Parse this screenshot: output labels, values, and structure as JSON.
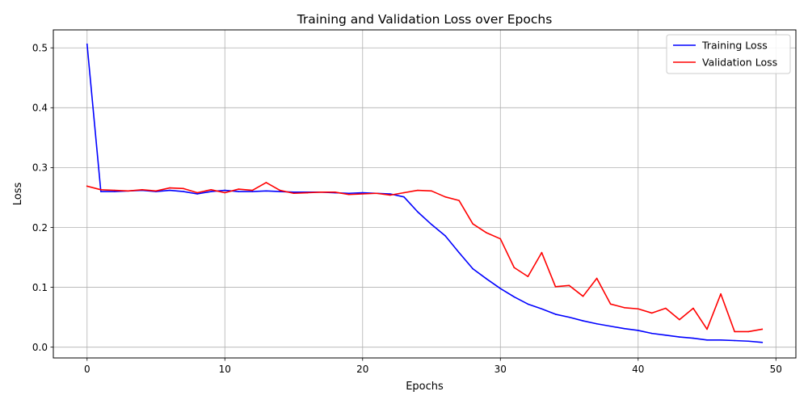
{
  "chart_data": {
    "type": "line",
    "title": "Training and Validation Loss over Epochs",
    "xlabel": "Epochs",
    "ylabel": "Loss",
    "xlim": [
      -2.45,
      51.45
    ],
    "ylim": [
      -0.018,
      0.53
    ],
    "xticks": [
      0,
      10,
      20,
      30,
      40,
      50
    ],
    "xtick_labels": [
      "0",
      "10",
      "20",
      "30",
      "40",
      "50"
    ],
    "yticks": [
      0.0,
      0.1,
      0.2,
      0.3,
      0.4,
      0.5
    ],
    "ytick_labels": [
      "0.0",
      "0.1",
      "0.2",
      "0.3",
      "0.4",
      "0.5"
    ],
    "grid": true,
    "legend_position": "upper right",
    "x": [
      0,
      1,
      2,
      3,
      4,
      5,
      6,
      7,
      8,
      9,
      10,
      11,
      12,
      13,
      14,
      15,
      16,
      17,
      18,
      19,
      20,
      21,
      22,
      23,
      24,
      25,
      26,
      27,
      28,
      29,
      30,
      31,
      32,
      33,
      34,
      35,
      36,
      37,
      38,
      39,
      40,
      41,
      42,
      43,
      44,
      45,
      46,
      47,
      48,
      49
    ],
    "series": [
      {
        "name": "Training Loss",
        "color": "#0000ff",
        "values": [
          0.506,
          0.26,
          0.26,
          0.261,
          0.262,
          0.26,
          0.262,
          0.26,
          0.256,
          0.26,
          0.262,
          0.26,
          0.26,
          0.261,
          0.26,
          0.259,
          0.259,
          0.259,
          0.258,
          0.257,
          0.258,
          0.257,
          0.256,
          0.251,
          0.226,
          0.205,
          0.186,
          0.158,
          0.131,
          0.114,
          0.098,
          0.084,
          0.072,
          0.064,
          0.055,
          0.05,
          0.044,
          0.039,
          0.035,
          0.031,
          0.028,
          0.023,
          0.02,
          0.017,
          0.015,
          0.012,
          0.012,
          0.011,
          0.01,
          0.008
        ]
      },
      {
        "name": "Validation Loss",
        "color": "#ff0000",
        "values": [
          0.269,
          0.263,
          0.262,
          0.261,
          0.263,
          0.261,
          0.266,
          0.265,
          0.258,
          0.263,
          0.258,
          0.264,
          0.262,
          0.275,
          0.262,
          0.257,
          0.258,
          0.259,
          0.259,
          0.255,
          0.256,
          0.257,
          0.254,
          0.258,
          0.262,
          0.261,
          0.251,
          0.245,
          0.206,
          0.191,
          0.181,
          0.133,
          0.118,
          0.158,
          0.101,
          0.103,
          0.085,
          0.115,
          0.072,
          0.066,
          0.064,
          0.057,
          0.065,
          0.046,
          0.065,
          0.03,
          0.089,
          0.026,
          0.026,
          0.03
        ]
      }
    ]
  }
}
